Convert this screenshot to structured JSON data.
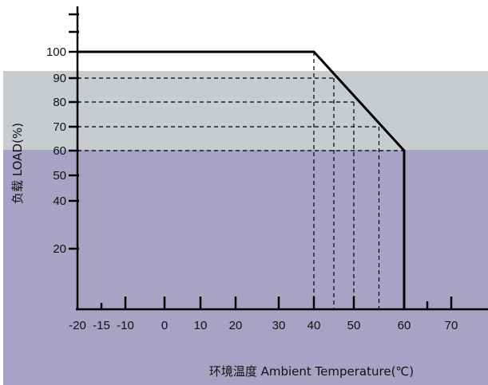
{
  "chart_data": {
    "type": "line",
    "title": "",
    "xlabel": "环境温度 Ambient Temperature(℃)",
    "ylabel": "负载 LOAD(%)",
    "x_ticks": [
      -20,
      -15,
      -10,
      0,
      10,
      20,
      30,
      40,
      50,
      60,
      70
    ],
    "y_ticks": [
      20,
      40,
      50,
      60,
      70,
      80,
      90,
      100
    ],
    "series": [
      {
        "x": [
          -20,
          40,
          60,
          60
        ],
        "y": [
          100,
          100,
          60,
          0
        ]
      }
    ],
    "reference_points": [
      {
        "x": 45,
        "y": 90
      },
      {
        "x": 50,
        "y": 80
      },
      {
        "x": 55,
        "y": 70
      },
      {
        "x": 60,
        "y": 60
      }
    ],
    "colors": {
      "upper_band": "#c8cbcf",
      "lower_band": "#a8a2c4",
      "line": "#000000"
    }
  }
}
